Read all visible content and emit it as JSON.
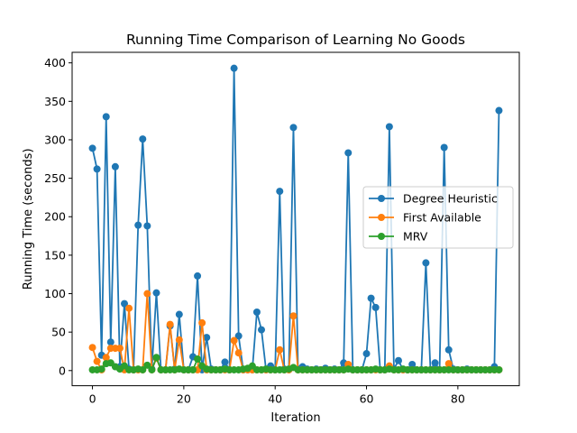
{
  "chart_data": {
    "type": "line",
    "title": "Running Time Comparison of Learning No Goods",
    "xlabel": "Iteration",
    "ylabel": "Running Time (seconds)",
    "xlim": [
      -4.45,
      93.45
    ],
    "ylim": [
      -19.7,
      413.7
    ],
    "xticks": [
      0,
      20,
      40,
      60,
      80
    ],
    "yticks": [
      0,
      50,
      100,
      150,
      200,
      250,
      300,
      350,
      400
    ],
    "grid": false,
    "legend_position": "center-right",
    "series": [
      {
        "name": "Degree Heuristic",
        "color": "#1f77b4",
        "values": [
          289,
          262,
          20,
          330,
          37,
          265,
          5,
          87,
          2,
          1,
          189,
          301,
          188,
          2,
          101,
          1,
          1,
          58,
          2,
          73,
          1,
          1,
          18,
          123,
          1,
          43,
          2,
          1,
          1,
          11,
          1,
          393,
          45,
          1,
          1,
          1,
          76,
          53,
          1,
          6,
          1,
          233,
          2,
          1,
          316,
          2,
          5,
          2,
          1,
          2,
          1,
          3,
          1,
          2,
          1,
          10,
          283,
          1,
          1,
          1,
          22,
          94,
          82,
          1,
          1,
          317,
          2,
          13,
          1,
          1,
          8,
          1,
          1,
          140,
          1,
          10,
          1,
          290,
          27,
          2,
          1,
          1,
          2,
          1,
          1,
          1,
          1,
          1,
          5,
          338
        ]
      },
      {
        "name": "First Available",
        "color": "#ff7f0e",
        "values": [
          30,
          12,
          1,
          17,
          29,
          29,
          29,
          1,
          81,
          1,
          1,
          1,
          100,
          1,
          16,
          1,
          1,
          60,
          1,
          40,
          1,
          1,
          1,
          1,
          62,
          1,
          1,
          1,
          1,
          1,
          1,
          39,
          23,
          1,
          1,
          1,
          1,
          1,
          1,
          1,
          1,
          27,
          1,
          1,
          71,
          1,
          1,
          1,
          1,
          1,
          1,
          1,
          1,
          1,
          1,
          1,
          8,
          1,
          1,
          1,
          1,
          1,
          1,
          1,
          1,
          6,
          1,
          1,
          1,
          1,
          1,
          1,
          1,
          1,
          1,
          1,
          1,
          1,
          9,
          1,
          1,
          1,
          1,
          1,
          1,
          1,
          1,
          1,
          1,
          1
        ]
      },
      {
        "name": "MRV",
        "color": "#2ca02c",
        "values": [
          1,
          1,
          2,
          9,
          10,
          5,
          2,
          6,
          1,
          1,
          2,
          1,
          7,
          1,
          17,
          1,
          1,
          1,
          1,
          2,
          1,
          1,
          1,
          15,
          6,
          2,
          1,
          1,
          1,
          2,
          1,
          1,
          1,
          2,
          3,
          6,
          1,
          1,
          2,
          1,
          1,
          1,
          1,
          2,
          4,
          1,
          1,
          1,
          1,
          1,
          1,
          1,
          1,
          1,
          1,
          1,
          2,
          1,
          1,
          1,
          1,
          1,
          2,
          1,
          1,
          2,
          1,
          1,
          2,
          1,
          1,
          1,
          1,
          1,
          1,
          1,
          1,
          1,
          1,
          1,
          1,
          1,
          1,
          1,
          1,
          1,
          1,
          1,
          1,
          1
        ]
      }
    ]
  }
}
